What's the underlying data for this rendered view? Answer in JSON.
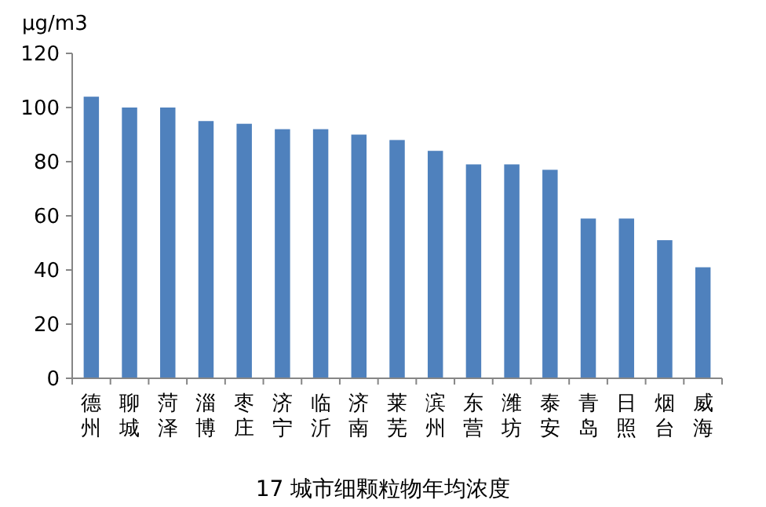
{
  "chart_data": {
    "type": "bar",
    "title": "17 城市细颗粒物年均浓度",
    "ylabel": "µg/m3",
    "categories": [
      "德州",
      "聊城",
      "菏泽",
      "淄博",
      "枣庄",
      "济宁",
      "临沂",
      "济南",
      "莱芜",
      "滨州",
      "东营",
      "潍坊",
      "泰安",
      "青岛",
      "日照",
      "烟台",
      "威海"
    ],
    "values": [
      104,
      100,
      100,
      95,
      94,
      92,
      92,
      90,
      88,
      84,
      79,
      79,
      77,
      59,
      59,
      51,
      41
    ],
    "color": "#4f81bd",
    "ylim": [
      0,
      120
    ],
    "yticks": [
      0,
      20,
      40,
      60,
      80,
      100,
      120
    ],
    "grid": false
  }
}
